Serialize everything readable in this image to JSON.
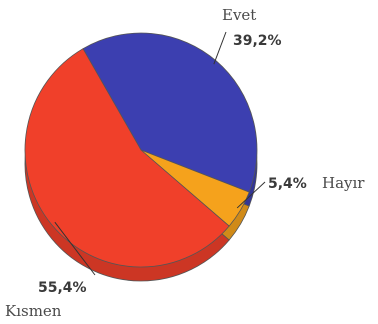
{
  "chart_data": {
    "type": "pie",
    "title": "",
    "slices": [
      {
        "label": "Evet",
        "value": 39.2,
        "value_label": "39,2%",
        "color": "#3c3fb0"
      },
      {
        "label": "Hayır",
        "value": 5.4,
        "value_label": "5,4%",
        "color": "#f5a21c"
      },
      {
        "label": "Kısmen",
        "value": 55.4,
        "value_label": "55,4%",
        "color": "#f0402a"
      }
    ],
    "style": "3d"
  }
}
